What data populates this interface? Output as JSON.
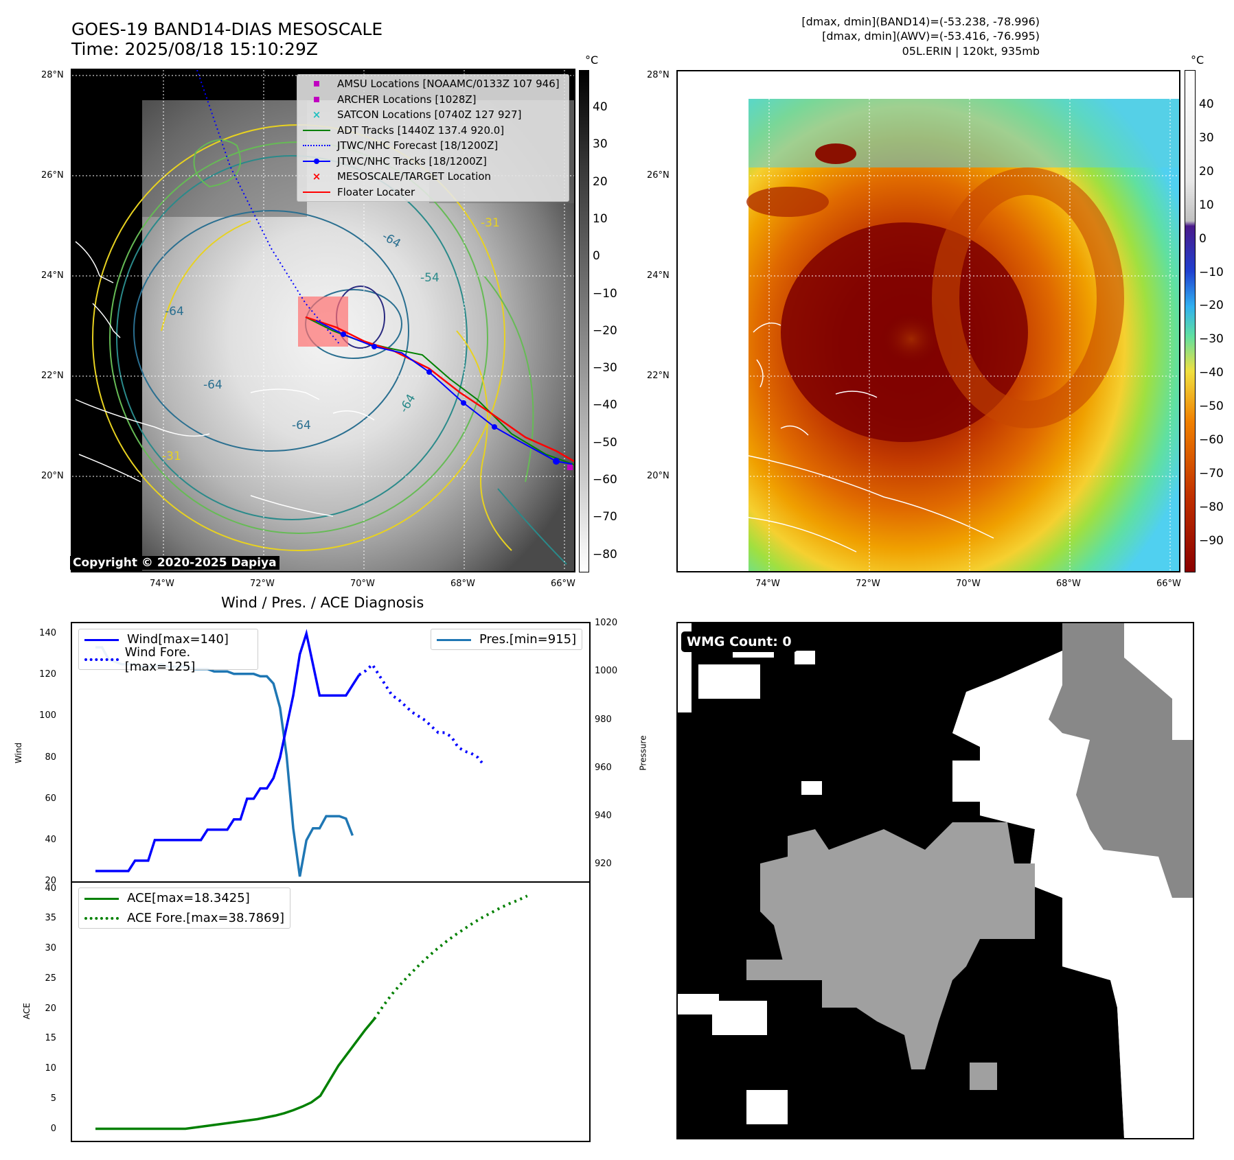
{
  "header": {
    "title_line1": "GOES-19 BAND14-DIAS MESOSCALE",
    "title_line2": "Time: 2025/08/18 15:10:29Z",
    "right_line1": "[dmax, dmin](BAND14)=(-53.238, -78.996)",
    "right_line2": "[dmax, dmin](AWV)=(-53.416, -76.995)",
    "right_line3": "05L.ERIN | 120kt, 935mb"
  },
  "map_left": {
    "lat_ticks": [
      "28°N",
      "26°N",
      "24°N",
      "22°N",
      "20°N"
    ],
    "lon_ticks": [
      "74°W",
      "72°W",
      "70°W",
      "68°W",
      "66°W"
    ],
    "copyright": "Copyright © 2020-2025 Dapiya",
    "contour_labels": [
      "-31",
      "-64",
      "-54",
      "-64",
      "-64",
      "-64",
      "-64",
      "-31"
    ],
    "legend": [
      {
        "label": "AMSU Locations [NOAAMC/0133Z 107 946]",
        "color": "#c000c0",
        "marker": "square"
      },
      {
        "label": "ARCHER Locations [1028Z]",
        "color": "#c000c0",
        "marker": "square"
      },
      {
        "label": "SATCON Locations [0740Z 127 927]",
        "color": "#20c0c0",
        "marker": "x"
      },
      {
        "label": "ADT Tracks [1440Z 137.4 920.0]",
        "color": "#008000",
        "marker": "line"
      },
      {
        "label": "JTWC/NHC Forecast [18/1200Z]",
        "color": "#0000ff",
        "marker": "dotted"
      },
      {
        "label": "JTWC/NHC Tracks [18/1200Z]",
        "color": "#0000ff",
        "marker": "line-dot"
      },
      {
        "label": "MESOSCALE/TARGET Location",
        "color": "#ff0000",
        "marker": "x"
      },
      {
        "label": "Floater Locater",
        "color": "#ff0000",
        "marker": "line"
      }
    ],
    "colorbar_unit": "°C",
    "colorbar_ticks": [
      "40",
      "30",
      "20",
      "10",
      "0",
      "−10",
      "−20",
      "−30",
      "−40",
      "−50",
      "−60",
      "−70",
      "−80"
    ]
  },
  "map_right": {
    "lat_ticks": [
      "28°N",
      "26°N",
      "24°N",
      "22°N",
      "20°N"
    ],
    "lon_ticks": [
      "74°W",
      "72°W",
      "70°W",
      "68°W",
      "66°W"
    ],
    "colorbar_unit": "°C",
    "colorbar_ticks": [
      "40",
      "30",
      "20",
      "10",
      "0",
      "−10",
      "−20",
      "−30",
      "−40",
      "−50",
      "−60",
      "−70",
      "−80",
      "−90"
    ]
  },
  "diagnosis": {
    "title": "Wind / Pres. / ACE Diagnosis",
    "wind_ylabel": "Wind",
    "pres_ylabel": "Pressure",
    "ace_ylabel": "ACE",
    "wind_ticks": [
      "140",
      "120",
      "100",
      "80",
      "60",
      "40",
      "20"
    ],
    "pres_ticks": [
      "1020",
      "1000",
      "980",
      "960",
      "940",
      "920"
    ],
    "ace_ticks": [
      "40",
      "35",
      "30",
      "25",
      "20",
      "15",
      "10",
      "5",
      "0"
    ],
    "legend_wind": [
      {
        "label": "Wind[max=140]",
        "color": "#0000ff",
        "style": "solid"
      },
      {
        "label": "Wind Fore.[max=125]",
        "color": "#0000ff",
        "style": "dotted"
      }
    ],
    "legend_pres": [
      {
        "label": "Pres.[min=915]",
        "color": "#1f77b4",
        "style": "solid"
      }
    ],
    "legend_ace": [
      {
        "label": "ACE[max=18.3425]",
        "color": "#008000",
        "style": "solid"
      },
      {
        "label": "ACE Fore.[max=38.7869]",
        "color": "#008000",
        "style": "dotted"
      }
    ]
  },
  "wmg": {
    "label": "WMG Count: 0"
  },
  "chart_data": [
    {
      "type": "line",
      "title": "Wind / Pres. / ACE Diagnosis",
      "ylabel": "Wind",
      "ylim": [
        20,
        145
      ],
      "series": [
        {
          "name": "Wind[max=140]",
          "values": [
            25,
            25,
            25,
            25,
            25,
            25,
            30,
            30,
            30,
            40,
            40,
            40,
            40,
            40,
            40,
            40,
            40,
            45,
            45,
            45,
            45,
            50,
            50,
            60,
            60,
            65,
            65,
            70,
            80,
            95,
            110,
            130,
            140,
            125,
            110,
            110,
            110,
            110,
            110,
            115,
            120
          ]
        },
        {
          "name": "Wind Fore.[max=125]",
          "values": [
            120,
            122,
            125,
            120,
            115,
            110,
            108,
            105,
            102,
            100,
            98,
            95,
            92,
            92,
            90,
            85,
            83,
            82,
            80,
            76
          ]
        }
      ]
    },
    {
      "type": "line",
      "ylabel": "Pressure",
      "ylim": [
        913,
        1020
      ],
      "series": [
        {
          "name": "Pres.[min=915]",
          "values": [
            1010,
            1010,
            1005,
            1004,
            1003,
            1003,
            1003,
            1002,
            1002,
            1002,
            1003,
            1002,
            1002,
            1002,
            1002,
            1001,
            1001,
            1001,
            1000,
            1000,
            1000,
            999,
            999,
            999,
            999,
            998,
            998,
            995,
            985,
            965,
            935,
            915,
            930,
            935,
            935,
            940,
            940,
            940,
            939,
            932
          ]
        }
      ]
    },
    {
      "type": "line",
      "ylabel": "ACE",
      "ylim": [
        -2,
        41
      ],
      "series": [
        {
          "name": "ACE[max=18.3425]",
          "values": [
            0,
            0,
            0,
            0,
            0,
            0,
            0,
            0,
            0,
            0,
            0,
            0.2,
            0.4,
            0.6,
            0.8,
            1.0,
            1.2,
            1.4,
            1.6,
            1.9,
            2.2,
            2.6,
            3.1,
            3.7,
            4.4,
            5.5,
            8.0,
            10.5,
            12.5,
            14.5,
            16.5,
            18.3
          ]
        },
        {
          "name": "ACE Fore.[max=38.7869]",
          "values": [
            18.3,
            20.5,
            22.5,
            24.2,
            25.8,
            27.3,
            28.7,
            30.0,
            31.2,
            32.3,
            33.3,
            34.3,
            35.2,
            36.0,
            36.8,
            37.5,
            38.1,
            38.8
          ]
        }
      ]
    }
  ]
}
